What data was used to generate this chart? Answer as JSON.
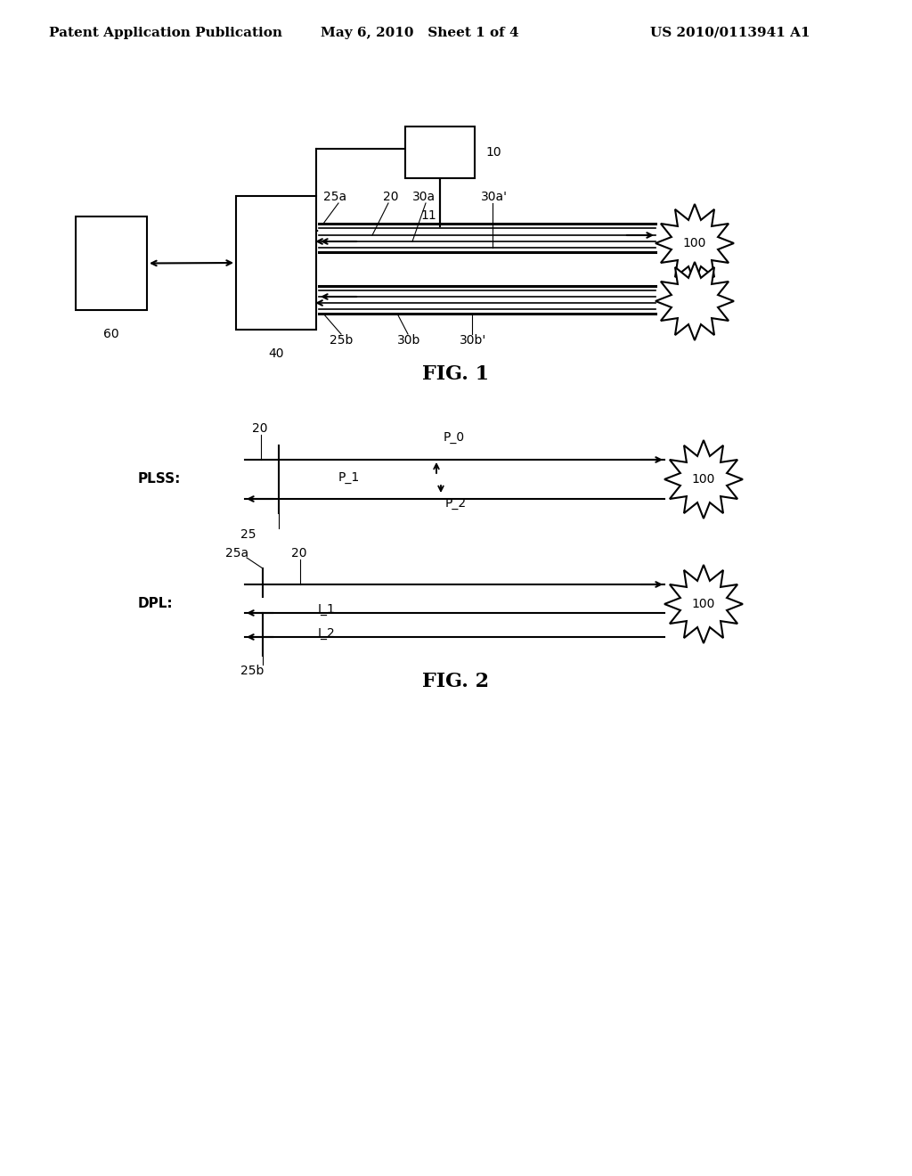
{
  "bg_color": "#ffffff",
  "line_color": "#000000",
  "header_left": "Patent Application Publication",
  "header_mid": "May 6, 2010   Sheet 1 of 4",
  "header_right": "US 2010/0113941 A1",
  "fig1_title": "FIG. 1",
  "fig2_title": "FIG. 2",
  "font_size_header": 11,
  "font_size_label": 10,
  "font_size_fig": 16
}
